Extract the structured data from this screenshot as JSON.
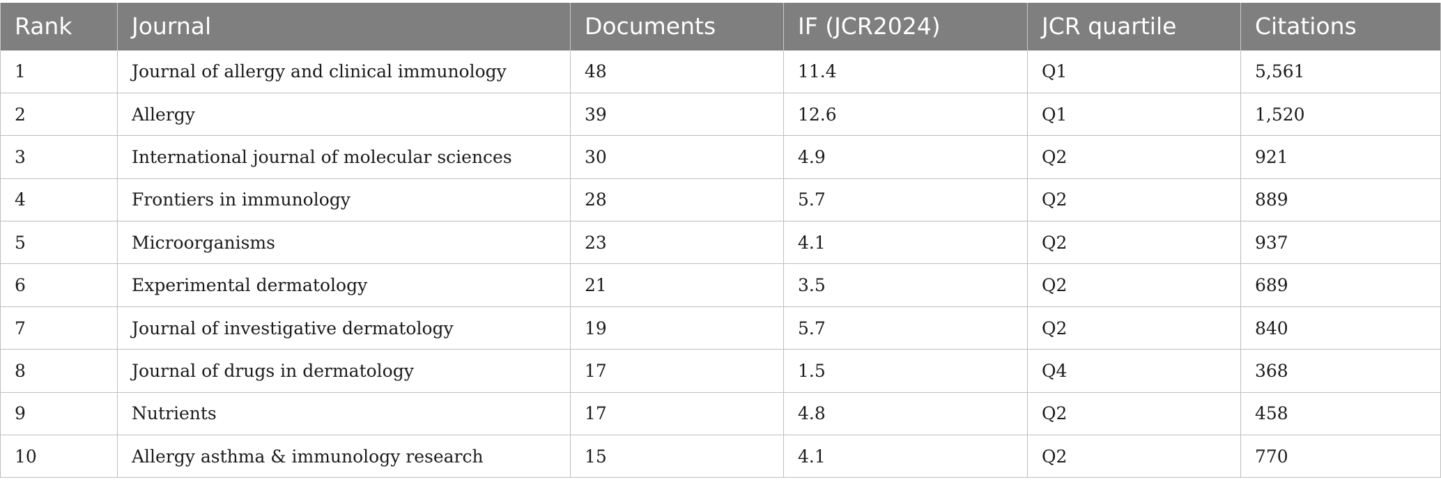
{
  "table": {
    "headers": [
      "Rank",
      "Journal",
      "Documents",
      "IF (JCR2024)",
      "JCR quartile",
      "Citations"
    ],
    "rows": [
      {
        "rank": "1",
        "journal": "Journal of allergy and clinical immunology",
        "documents": "48",
        "if": "11.4",
        "quartile": "Q1",
        "citations": "5,561"
      },
      {
        "rank": "2",
        "journal": "Allergy",
        "documents": "39",
        "if": "12.6",
        "quartile": "Q1",
        "citations": "1,520"
      },
      {
        "rank": "3",
        "journal": "International journal of molecular sciences",
        "documents": "30",
        "if": "4.9",
        "quartile": "Q2",
        "citations": "921"
      },
      {
        "rank": "4",
        "journal": "Frontiers in immunology",
        "documents": "28",
        "if": "5.7",
        "quartile": "Q2",
        "citations": "889"
      },
      {
        "rank": "5",
        "journal": "Microorganisms",
        "documents": "23",
        "if": "4.1",
        "quartile": "Q2",
        "citations": "937"
      },
      {
        "rank": "6",
        "journal": "Experimental dermatology",
        "documents": "21",
        "if": "3.5",
        "quartile": "Q2",
        "citations": "689"
      },
      {
        "rank": "7",
        "journal": "Journal of investigative dermatology",
        "documents": "19",
        "if": "5.7",
        "quartile": "Q2",
        "citations": "840"
      },
      {
        "rank": "8",
        "journal": "Journal of drugs in dermatology",
        "documents": "17",
        "if": "1.5",
        "quartile": "Q4",
        "citations": "368"
      },
      {
        "rank": "9",
        "journal": "Nutrients",
        "documents": "17",
        "if": "4.8",
        "quartile": "Q2",
        "citations": "458"
      },
      {
        "rank": "10",
        "journal": "Allergy asthma & immunology research",
        "documents": "15",
        "if": "4.1",
        "quartile": "Q2",
        "citations": "770"
      }
    ]
  },
  "colors": {
    "header_bg": "#7f7f7f",
    "header_text": "#ffffff",
    "grid": "#bdbdbd"
  }
}
